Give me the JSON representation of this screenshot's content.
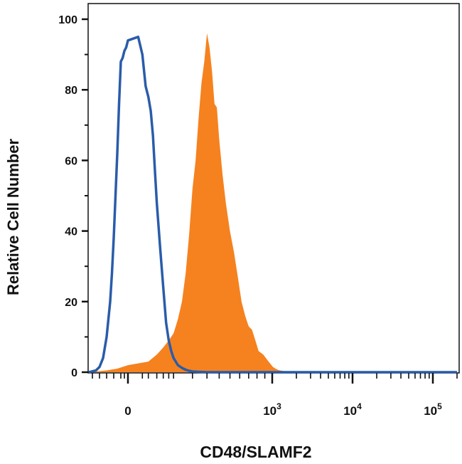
{
  "chart_data": {
    "type": "area",
    "xlabel": "CD48/SLAMF2",
    "ylabel": "Relative Cell Number",
    "x_scale": "biexponential",
    "x_ticks": [
      {
        "value": 0,
        "base": "0",
        "exp": ""
      },
      {
        "value": 1000,
        "base": "10",
        "exp": "3"
      },
      {
        "value": 10000,
        "base": "10",
        "exp": "4"
      },
      {
        "value": 100000,
        "base": "10",
        "exp": "5"
      }
    ],
    "ylim": [
      0,
      100
    ],
    "y_ticks": [
      0,
      20,
      40,
      60,
      80,
      100
    ],
    "grid": false,
    "legend": "none",
    "series": [
      {
        "style": "filled",
        "color": "#f5821f",
        "x": [
          -110,
          -60,
          -30,
          0,
          20,
          40,
          60,
          80,
          100,
          120,
          140,
          160,
          180,
          200,
          220,
          240,
          260,
          280,
          300,
          320,
          340,
          360,
          380,
          400,
          430,
          460,
          500,
          540,
          580,
          620,
          660,
          700,
          740,
          780,
          820,
          880,
          950,
          1020,
          1100,
          1200,
          1400,
          1700,
          2000,
          3000,
          6000,
          20000,
          60000,
          200000
        ],
        "y": [
          0,
          0.5,
          1,
          2,
          3,
          5,
          7,
          9,
          11,
          15,
          20,
          28,
          39,
          52,
          60,
          72,
          82,
          88,
          96,
          92,
          85,
          76,
          75,
          66,
          56,
          48,
          40,
          34,
          27,
          20,
          16,
          13,
          12,
          9,
          6,
          5,
          3,
          1.5,
          1,
          0.6,
          0.3,
          0.2,
          0.1,
          0,
          0,
          0,
          0,
          0
        ]
      },
      {
        "style": "line",
        "color": "#2a5caa",
        "x": [
          -110,
          -90,
          -80,
          -70,
          -60,
          -50,
          -45,
          -40,
          -35,
          -30,
          -25,
          -20,
          -15,
          -10,
          -5,
          0,
          5,
          10,
          15,
          20,
          25,
          30,
          35,
          40,
          50,
          60,
          70,
          80,
          90,
          100,
          110,
          120,
          140,
          160,
          180,
          200,
          240,
          300,
          400,
          1000,
          10000,
          100000,
          200000
        ],
        "y": [
          0,
          0.5,
          1.5,
          4,
          10,
          20,
          28,
          38,
          50,
          62,
          76,
          88,
          89,
          91,
          92,
          94,
          95,
          90,
          81,
          78,
          74,
          67,
          57,
          48,
          35,
          24,
          14,
          9,
          6,
          4,
          3,
          2,
          1.2,
          0.7,
          0.4,
          0.2,
          0.1,
          0,
          0,
          0,
          0,
          0,
          0
        ]
      }
    ]
  }
}
